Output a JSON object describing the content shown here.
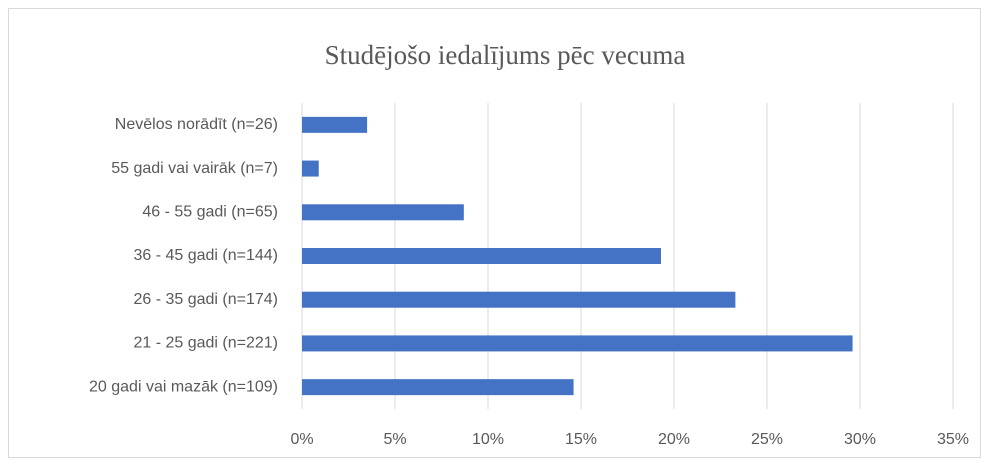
{
  "chart_data": {
    "type": "barh",
    "title": "Studējošo iedalījums pēc vecuma",
    "categories": [
      "Nevēlos norādīt (n=26)",
      "55 gadi vai vairāk (n=7)",
      "46 - 55 gadi (n=65)",
      "36 - 45 gadi (n=144)",
      "26 - 35 gadi (n=174)",
      "21 - 25 gadi (n=221)",
      "20 gadi vai mazāk (n=109)"
    ],
    "values": [
      3.5,
      0.9,
      8.7,
      19.3,
      23.3,
      29.6,
      14.6
    ],
    "color": "#4472c4",
    "xlim": [
      0,
      35
    ],
    "xticks": [
      {
        "value": 0,
        "label": "0%"
      },
      {
        "value": 5,
        "label": "5%"
      },
      {
        "value": 10,
        "label": "10%"
      },
      {
        "value": 15,
        "label": "15%"
      },
      {
        "value": 20,
        "label": "20%"
      },
      {
        "value": 25,
        "label": "25%"
      },
      {
        "value": 30,
        "label": "30%"
      },
      {
        "value": 35,
        "label": "35%"
      }
    ],
    "grid": true
  }
}
